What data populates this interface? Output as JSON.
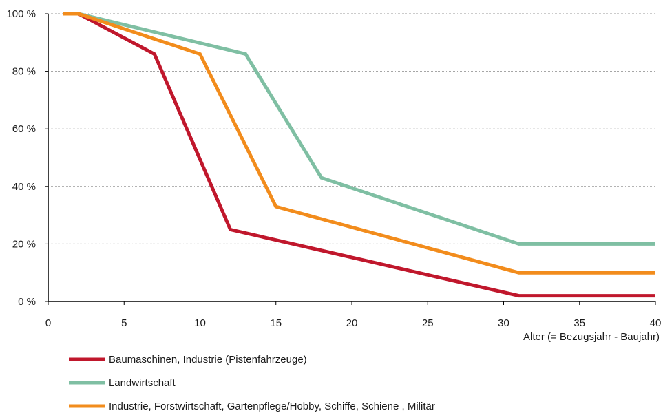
{
  "chart_data": {
    "type": "line",
    "xlabel": "Alter (= Bezugsjahr - Baujahr)",
    "ylabel": "",
    "xlim": [
      0,
      40
    ],
    "ylim": [
      0,
      100
    ],
    "x_ticks": [
      "0",
      "5",
      "10",
      "15",
      "20",
      "25",
      "30",
      "35",
      "40"
    ],
    "y_ticks": [
      "0 %",
      "20 %",
      "40 %",
      "60 %",
      "80 %",
      "100 %"
    ],
    "grid": "horizontal, dotted",
    "legend_position": "bottom",
    "series": [
      {
        "name": "Baumaschinen, Industrie (Pistenfahrzeuge)",
        "color": "#c0172c",
        "x": [
          1,
          2,
          7,
          12,
          31,
          40
        ],
        "y": [
          100,
          100,
          86,
          25,
          2,
          2
        ]
      },
      {
        "name": "Landwirtschaft",
        "color": "#7fbfa3",
        "x": [
          1,
          2,
          13,
          18,
          31,
          40
        ],
        "y": [
          100,
          100,
          86,
          43,
          20,
          20
        ]
      },
      {
        "name": "Industrie, Forstwirtschaft, Gartenpflege/Hobby, Schiffe, Schiene , Militär",
        "color": "#f28c1c",
        "x": [
          1,
          2,
          10,
          15,
          31,
          40
        ],
        "y": [
          100,
          100,
          86,
          33,
          10,
          10
        ]
      }
    ]
  }
}
